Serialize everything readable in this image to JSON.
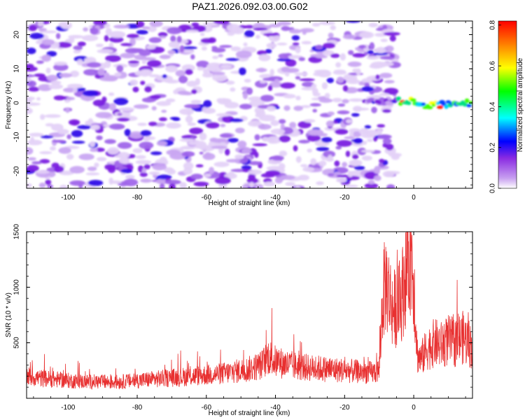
{
  "title": "PAZ1.2026.092.03.00.G02",
  "chart_data": [
    {
      "type": "heatmap",
      "name": "spectrogram",
      "xlabel": "Height of straight line (km)",
      "ylabel": "Frequency (Hz)",
      "xlim": [
        -112,
        17
      ],
      "ylim": [
        -25,
        24
      ],
      "xticks": [
        -100,
        -80,
        -60,
        -40,
        -20,
        0
      ],
      "yticks": [
        -20,
        -10,
        0,
        10,
        20
      ],
      "colorbar": {
        "label": "Normalized spectral amplitude",
        "range": [
          0.0,
          0.82
        ],
        "ticks": [
          0.0,
          0.2,
          0.4,
          0.6,
          0.8
        ],
        "tick_labels": [
          "0.0",
          "0.2",
          "0.4",
          "0.6",
          "0.8"
        ]
      },
      "features": [
        {
          "description": "scattered purple noise blobs",
          "x_range": [
            -112,
            -5
          ],
          "freq_range": [
            -25,
            24
          ],
          "amplitude_range": [
            0.02,
            0.2
          ]
        },
        {
          "description": "carrier line near 0 Hz",
          "x_range": [
            -5,
            17
          ],
          "freq_center": 0,
          "amplitude_range": [
            0.3,
            0.82
          ]
        }
      ]
    },
    {
      "type": "line",
      "name": "snr",
      "xlabel": "Height of straight line (km)",
      "ylabel": "SNR (10 * v/v)",
      "xlim": [
        -112,
        17
      ],
      "ylim": [
        0,
        1500
      ],
      "xticks": [
        -100,
        -80,
        -60,
        -40,
        -20,
        0
      ],
      "yticks": [
        500,
        1000,
        1500
      ],
      "color": "#e83030",
      "series": [
        {
          "name": "SNR",
          "x": [
            -112,
            -108,
            -104,
            -100,
            -96,
            -92,
            -88,
            -84,
            -80,
            -76,
            -72,
            -68,
            -64,
            -60,
            -56,
            -52,
            -48,
            -44,
            -42,
            -40,
            -36,
            -32,
            -28,
            -24,
            -20,
            -16,
            -12,
            -10,
            -9,
            -8,
            -6,
            -4,
            -3,
            -2,
            -1,
            0,
            1,
            2,
            4,
            6,
            8,
            10,
            12,
            14,
            16,
            17
          ],
          "y": [
            200,
            180,
            170,
            160,
            150,
            150,
            145,
            150,
            160,
            170,
            180,
            190,
            200,
            210,
            220,
            240,
            260,
            300,
            380,
            330,
            300,
            280,
            270,
            260,
            250,
            240,
            230,
            250,
            900,
            1050,
            800,
            850,
            1000,
            1200,
            1350,
            1100,
            400,
            350,
            450,
            500,
            480,
            520,
            500,
            550,
            500,
            450
          ]
        }
      ]
    }
  ]
}
